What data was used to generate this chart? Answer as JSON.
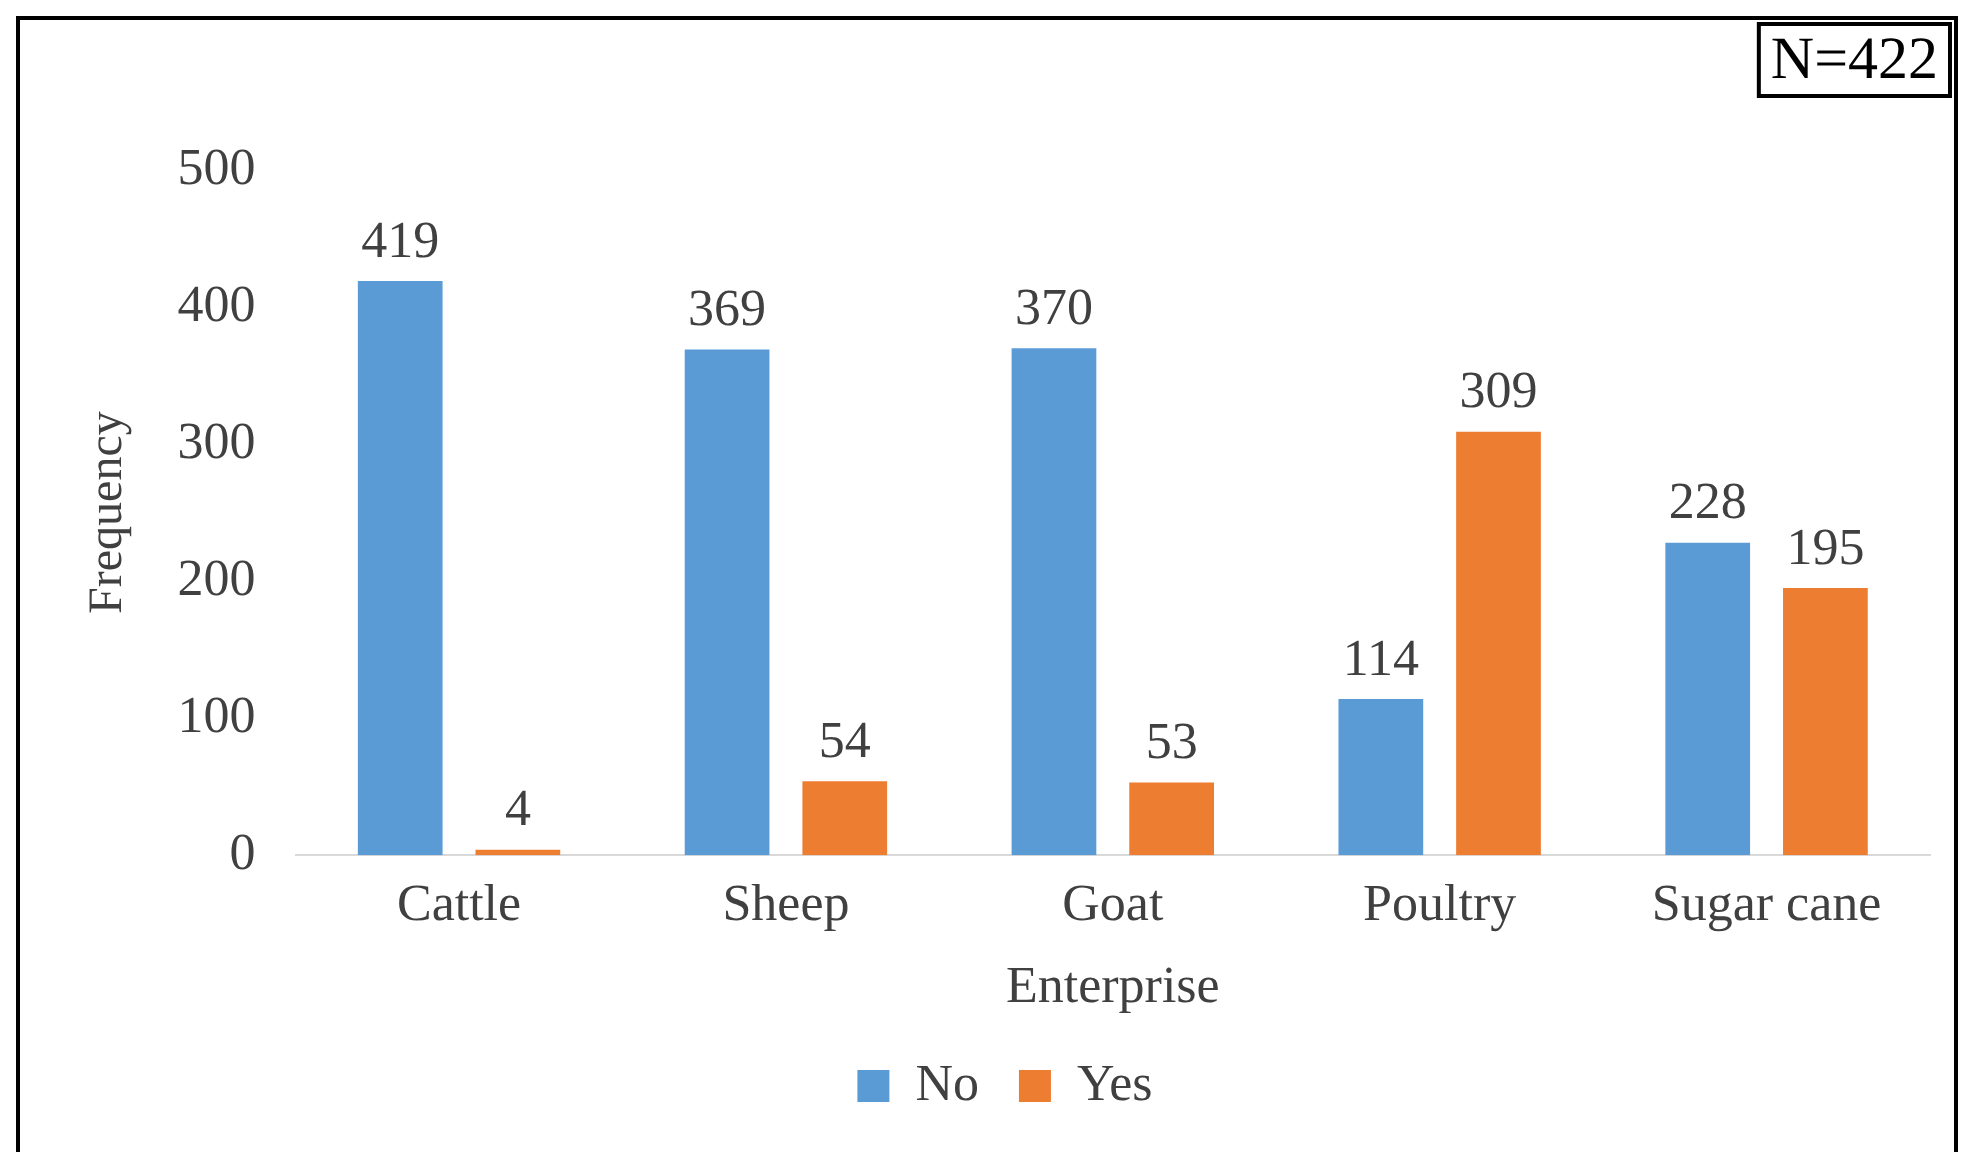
{
  "chart_data": {
    "type": "bar",
    "xlabel": "Enterprise",
    "ylabel": "Frequency",
    "categories": [
      "Cattle",
      "Sheep",
      "Goat",
      "Poultry",
      "Sugar cane"
    ],
    "series": [
      {
        "name": "No",
        "color": "#5b9bd5",
        "values": [
          419,
          369,
          370,
          114,
          228
        ]
      },
      {
        "name": "Yes",
        "color": "#ed7d31",
        "values": [
          4,
          54,
          53,
          309,
          195
        ]
      }
    ],
    "ylim": [
      0,
      500
    ],
    "yticks": [
      0,
      100,
      200,
      300,
      400,
      500
    ],
    "grid": false,
    "legend": "bottom",
    "data_labels": true,
    "annotations": [
      "N=422"
    ]
  }
}
